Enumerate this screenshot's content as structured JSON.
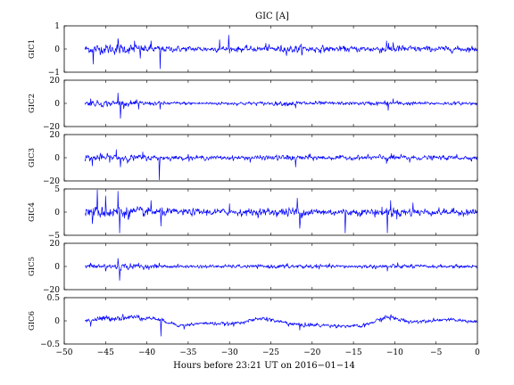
{
  "chart_data": {
    "type": "line",
    "title": "GIC [A]",
    "xlabel": "Hours before  23:21 UT on 2016−01−14",
    "xlim": [
      -50,
      0
    ],
    "xticks": [
      "−50",
      "−45",
      "−40",
      "−35",
      "−30",
      "−25",
      "−20",
      "−15",
      "−10",
      "−5",
      "0"
    ],
    "data_x_range": [
      -47.5,
      0
    ],
    "grid": false,
    "legend": "none",
    "line_color": "#0000ff",
    "panels": [
      {
        "ylabel": "GIC1",
        "ylim": [
          -1,
          1
        ],
        "yticks": [
          "1",
          "0",
          "−1"
        ],
        "baseline": 0,
        "series": {
          "noise_amplitude": 0.1,
          "spikes": [
            {
              "x": -46.5,
              "y": -0.65
            },
            {
              "x": -43.5,
              "y": 0.45
            },
            {
              "x": -41.5,
              "y": 0.35
            },
            {
              "x": -40.8,
              "y": -0.4
            },
            {
              "x": -39.5,
              "y": 0.35
            },
            {
              "x": -38.4,
              "y": -0.85
            },
            {
              "x": -31.2,
              "y": 0.4
            },
            {
              "x": -30.1,
              "y": 0.6
            },
            {
              "x": -25.6,
              "y": 0.25
            },
            {
              "x": -11.0,
              "y": 0.35
            },
            {
              "x": -10.2,
              "y": 0.28
            }
          ]
        }
      },
      {
        "ylabel": "GIC2",
        "ylim": [
          -20,
          20
        ],
        "yticks": [
          "20",
          "0",
          "−20"
        ],
        "baseline": 0,
        "series": {
          "noise_amplitude": 1.2,
          "spikes": [
            {
              "x": -46.8,
              "y": 4
            },
            {
              "x": -45.5,
              "y": -3
            },
            {
              "x": -43.5,
              "y": 9
            },
            {
              "x": -43.2,
              "y": -13
            },
            {
              "x": -41.0,
              "y": -5
            },
            {
              "x": -38.4,
              "y": -5
            },
            {
              "x": -22.0,
              "y": -4
            },
            {
              "x": -10.8,
              "y": -6
            },
            {
              "x": -10.2,
              "y": 4
            }
          ]
        }
      },
      {
        "ylabel": "GIC3",
        "ylim": [
          -20,
          20
        ],
        "yticks": [
          "20",
          "0",
          "−20"
        ],
        "baseline": 0,
        "series": {
          "noise_amplitude": 1.5,
          "spikes": [
            {
              "x": -46.6,
              "y": -7
            },
            {
              "x": -43.7,
              "y": 7
            },
            {
              "x": -43.2,
              "y": -8
            },
            {
              "x": -40.5,
              "y": 5
            },
            {
              "x": -38.5,
              "y": -19
            },
            {
              "x": -35.0,
              "y": 3
            },
            {
              "x": -27.5,
              "y": -4
            },
            {
              "x": -22.0,
              "y": -8
            },
            {
              "x": -11.0,
              "y": -5
            },
            {
              "x": -8.2,
              "y": -4
            },
            {
              "x": -2.5,
              "y": 3
            }
          ]
        }
      },
      {
        "ylabel": "GIC4",
        "ylim": [
          -5,
          5
        ],
        "yticks": [
          "5",
          "0",
          "−5"
        ],
        "baseline": 0,
        "series": {
          "noise_amplitude": 0.6,
          "spikes": [
            {
              "x": -46.6,
              "y": -2.5
            },
            {
              "x": -46.0,
              "y": 4.8
            },
            {
              "x": -45.0,
              "y": 3.5
            },
            {
              "x": -43.5,
              "y": 4.5
            },
            {
              "x": -43.3,
              "y": -4.5
            },
            {
              "x": -39.5,
              "y": 2.5
            },
            {
              "x": -38.3,
              "y": -3.0
            },
            {
              "x": -30.0,
              "y": 1.8
            },
            {
              "x": -21.8,
              "y": 3.0
            },
            {
              "x": -21.5,
              "y": -3.5
            },
            {
              "x": -16.0,
              "y": -4.5
            },
            {
              "x": -10.9,
              "y": -4.5
            },
            {
              "x": -10.5,
              "y": 2.5
            },
            {
              "x": -7.8,
              "y": 2.0
            }
          ]
        }
      },
      {
        "ylabel": "GIC5",
        "ylim": [
          -20,
          20
        ],
        "yticks": [
          "20",
          "0",
          "−20"
        ],
        "baseline": 0,
        "series": {
          "noise_amplitude": 1.2,
          "spikes": [
            {
              "x": -46.8,
              "y": 3
            },
            {
              "x": -45.0,
              "y": -4
            },
            {
              "x": -43.5,
              "y": 7
            },
            {
              "x": -43.3,
              "y": -12
            },
            {
              "x": -41.0,
              "y": 3
            },
            {
              "x": -38.5,
              "y": 3
            },
            {
              "x": -10.9,
              "y": -4
            },
            {
              "x": -8.0,
              "y": 2
            }
          ]
        }
      },
      {
        "ylabel": "GIC6",
        "ylim": [
          -0.5,
          0.5
        ],
        "yticks": [
          "0.5",
          "0",
          "−0.5"
        ],
        "baseline": 0,
        "series": {
          "noise_amplitude": 0.03,
          "drift": [
            {
              "x": -47.5,
              "y": 0.0
            },
            {
              "x": -45.0,
              "y": 0.05
            },
            {
              "x": -42.0,
              "y": 0.08
            },
            {
              "x": -39.0,
              "y": 0.05
            },
            {
              "x": -36.0,
              "y": -0.1
            },
            {
              "x": -33.0,
              "y": -0.05
            },
            {
              "x": -30.0,
              "y": -0.07
            },
            {
              "x": -26.0,
              "y": 0.05
            },
            {
              "x": -22.0,
              "y": -0.08
            },
            {
              "x": -18.0,
              "y": -0.1
            },
            {
              "x": -14.0,
              "y": -0.12
            },
            {
              "x": -11.0,
              "y": 0.08
            },
            {
              "x": -8.0,
              "y": -0.02
            },
            {
              "x": -4.0,
              "y": 0.03
            },
            {
              "x": 0.0,
              "y": -0.02
            }
          ],
          "spikes": [
            {
              "x": -46.8,
              "y": -0.12
            },
            {
              "x": -41.0,
              "y": 0.12
            },
            {
              "x": -38.3,
              "y": -0.33
            },
            {
              "x": -35.5,
              "y": -0.18
            },
            {
              "x": -29.5,
              "y": -0.12
            },
            {
              "x": -25.5,
              "y": 0.08
            },
            {
              "x": -21.5,
              "y": -0.2
            },
            {
              "x": -10.5,
              "y": 0.12
            }
          ]
        }
      }
    ]
  }
}
